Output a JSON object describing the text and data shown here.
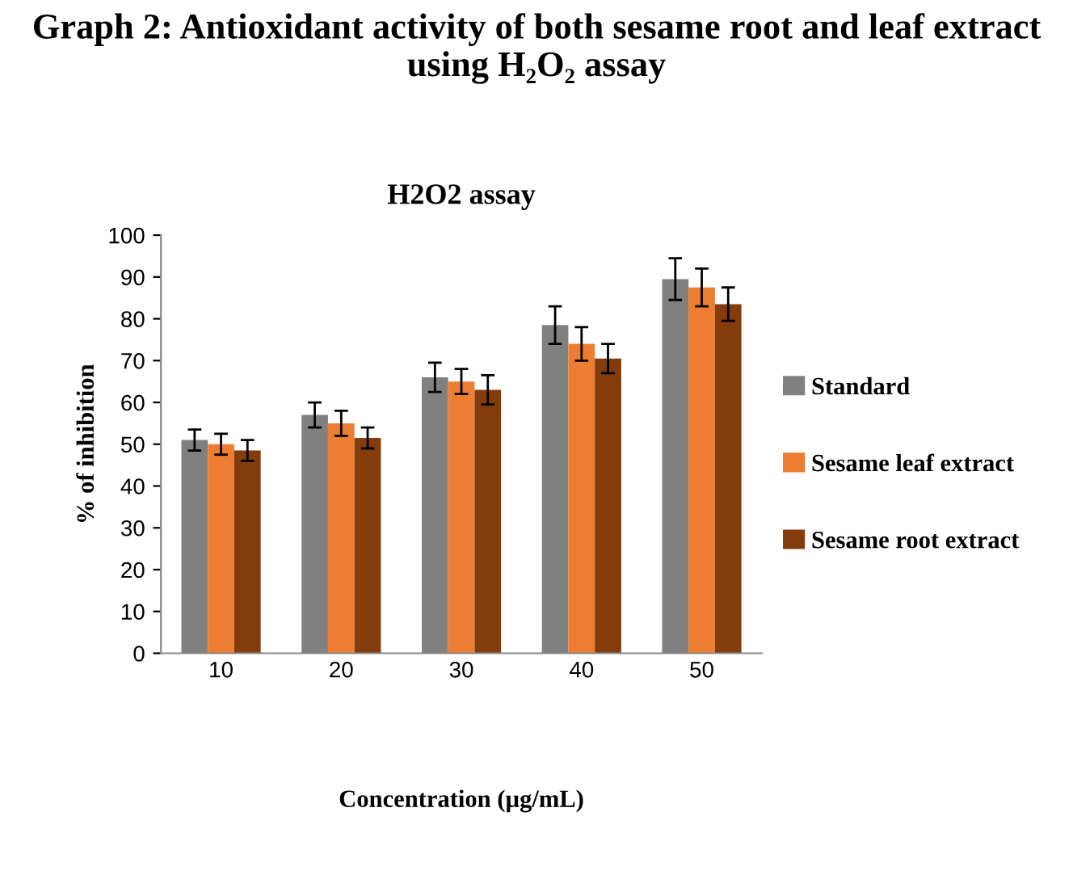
{
  "chart_data": {
    "type": "bar",
    "title": "Graph 2: Antioxidant activity of both sesame root and leaf extract using H₂O₂ assay",
    "subtitle": "H2O2 assay",
    "xlabel": "Concentration (µg/mL)",
    "ylabel": "% of inhibition",
    "categories": [
      "10",
      "20",
      "30",
      "40",
      "50"
    ],
    "series": [
      {
        "name": "Standard",
        "color": "#808080",
        "values": [
          51,
          57,
          66,
          78.5,
          89.5
        ],
        "errors": [
          2.5,
          3,
          3.5,
          4.5,
          5
        ]
      },
      {
        "name": "Sesame leaf extract",
        "color": "#ed7d31",
        "values": [
          50,
          55,
          65,
          74,
          87.5
        ],
        "errors": [
          2.5,
          3,
          3,
          4,
          4.5
        ]
      },
      {
        "name": "Sesame root extract",
        "color": "#843c0c",
        "values": [
          48.5,
          51.5,
          63,
          70.5,
          83.5
        ],
        "errors": [
          2.5,
          2.5,
          3.5,
          3.5,
          4
        ]
      }
    ],
    "ylim": [
      0,
      100
    ],
    "yticks": [
      0,
      10,
      20,
      30,
      40,
      50,
      60,
      70,
      80,
      90,
      100
    ],
    "grid": false,
    "legend": "right"
  }
}
